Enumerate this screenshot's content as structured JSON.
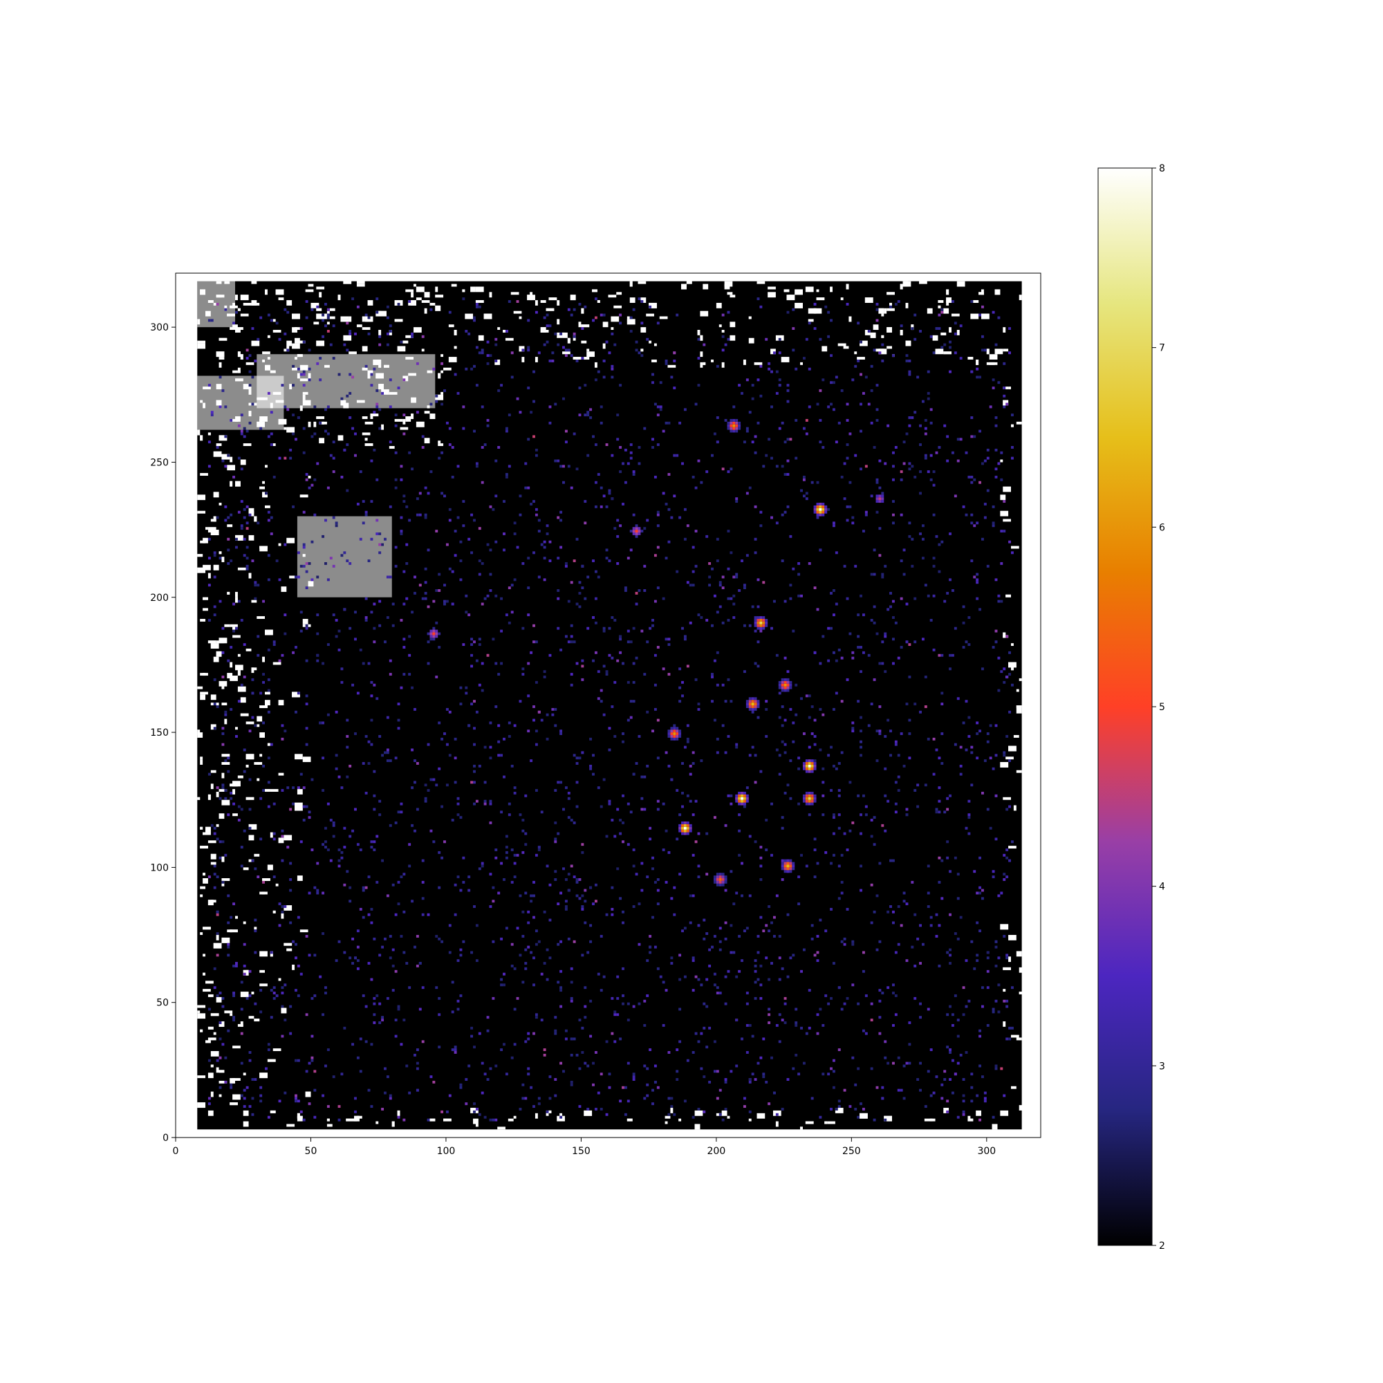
{
  "chart_data": {
    "type": "heatmap",
    "title": "",
    "xlabel": "",
    "ylabel": "",
    "xlim": [
      0,
      320
    ],
    "ylim": [
      0,
      320
    ],
    "x_ticks": [
      0,
      50,
      100,
      150,
      200,
      250,
      300
    ],
    "y_ticks": [
      0,
      50,
      100,
      150,
      200,
      250,
      300
    ],
    "x_tick_labels": [
      "0",
      "50",
      "100",
      "150",
      "200",
      "250",
      "300"
    ],
    "y_tick_labels": [
      "0",
      "50",
      "100",
      "150",
      "200",
      "250",
      "300"
    ],
    "colormap": "CMRmap",
    "colorbar": {
      "range": [
        2,
        8
      ],
      "ticks": [
        2,
        3,
        4,
        5,
        6,
        7,
        8
      ],
      "tick_labels": [
        "2",
        "3",
        "4",
        "5",
        "6",
        "7",
        "8"
      ],
      "colors": [
        "#000000",
        "#262680",
        "#4c26c0",
        "#993fa6",
        "#ff4026",
        "#e87f00",
        "#e6bf1a",
        "#e6e680",
        "#ffffff"
      ]
    },
    "grid": false,
    "legend": "none",
    "bright_sources": [
      {
        "x": 234,
        "y": 137,
        "value": 8
      },
      {
        "x": 209,
        "y": 125,
        "value": 8
      },
      {
        "x": 188,
        "y": 114,
        "value": 8
      },
      {
        "x": 238,
        "y": 232,
        "value": 8
      },
      {
        "x": 216,
        "y": 190,
        "value": 7
      },
      {
        "x": 234,
        "y": 125,
        "value": 7
      },
      {
        "x": 213,
        "y": 160,
        "value": 6.5
      },
      {
        "x": 225,
        "y": 167,
        "value": 6
      },
      {
        "x": 184,
        "y": 149,
        "value": 6
      },
      {
        "x": 226,
        "y": 100,
        "value": 6.5
      },
      {
        "x": 201,
        "y": 95,
        "value": 5.5
      },
      {
        "x": 206,
        "y": 263,
        "value": 6
      },
      {
        "x": 260,
        "y": 236,
        "value": 4.5
      },
      {
        "x": 170,
        "y": 224,
        "value": 5
      },
      {
        "x": 95,
        "y": 186,
        "value": 5
      }
    ]
  }
}
